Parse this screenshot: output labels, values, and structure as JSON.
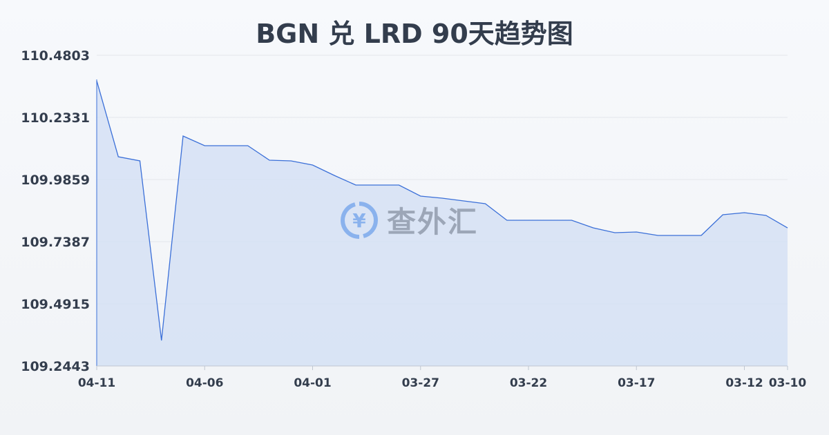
{
  "chart_data": {
    "type": "area",
    "title": "BGN 兑 LRD 90天趋势图",
    "xlabel": "",
    "ylabel": "",
    "ylim": [
      109.2443,
      110.4803
    ],
    "yticks": [
      "110.4803",
      "110.2331",
      "109.9859",
      "109.7387",
      "109.4915",
      "109.2443"
    ],
    "xtick_labels": [
      "04-11",
      "04-06",
      "04-01",
      "03-27",
      "03-22",
      "03-17",
      "03-12",
      "03-10"
    ],
    "grid": true,
    "x": [
      "04-11",
      "04-10",
      "04-09",
      "04-08",
      "04-07",
      "04-06",
      "04-05",
      "04-04",
      "04-03",
      "04-02",
      "04-01",
      "03-31",
      "03-30",
      "03-29",
      "03-28",
      "03-27",
      "03-26",
      "03-25",
      "03-24",
      "03-23",
      "03-22",
      "03-21",
      "03-20",
      "03-19",
      "03-18",
      "03-17",
      "03-16",
      "03-15",
      "03-14",
      "03-13",
      "03-12",
      "03-11",
      "03-10"
    ],
    "values": [
      110.3787,
      110.0765,
      110.0601,
      109.3459,
      110.1589,
      110.1205,
      110.1205,
      110.1205,
      110.0628,
      110.0601,
      110.0436,
      110.0024,
      109.9639,
      109.9639,
      109.9639,
      109.92,
      109.9117,
      109.9008,
      109.8898,
      109.8239,
      109.8239,
      109.8239,
      109.8239,
      109.7936,
      109.7744,
      109.7772,
      109.7634,
      109.7634,
      109.7634,
      109.8458,
      109.8541,
      109.8431,
      109.7936
    ],
    "colors": {
      "line": "#3a6fd8",
      "fill": "#d5e0f5"
    }
  },
  "watermark": {
    "text": "查外汇",
    "icon": "yen-exchange-icon"
  }
}
